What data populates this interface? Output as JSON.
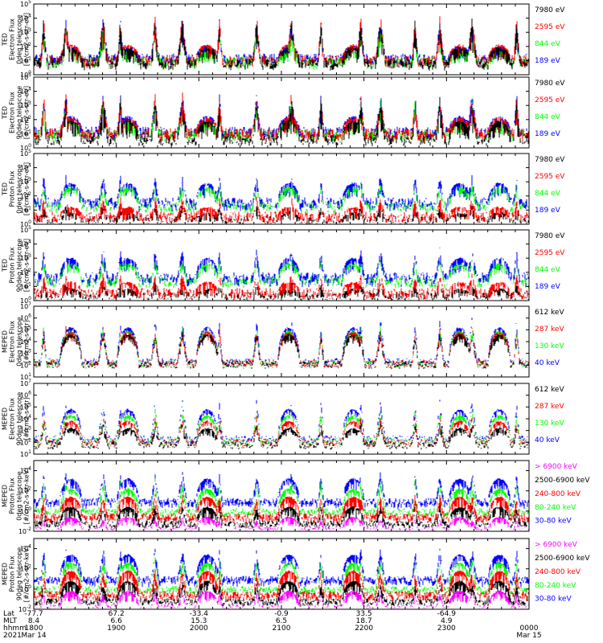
{
  "colors": {
    "blue": "#0000ff",
    "red": "#ff0000",
    "green": "#00ff00",
    "black": "#000000",
    "magenta": "#ff00ff"
  },
  "chart_data": [
    {
      "type": "line",
      "ylabel": "TED\nElectron Flux\n0deg telescope\n[#/cm2-s-str-eV]",
      "yscale": "log",
      "ylim_exp": [
        0,
        5
      ],
      "ytick_exponents": [
        0,
        1,
        2,
        3,
        4,
        5
      ],
      "legend": [
        {
          "label": "7980 eV",
          "color": "#000000"
        },
        {
          "label": "2595 eV",
          "color": "#ff0000"
        },
        {
          "label": "844 eV",
          "color": "#00ff00"
        },
        {
          "label": "189 eV",
          "color": "#0000ff"
        }
      ],
      "series": [
        {
          "color": "#0000ff",
          "base": 1.2,
          "peak": 2.0,
          "spike": 4.2,
          "minfrac": 0.55
        },
        {
          "color": "#00ff00",
          "base": 1.0,
          "peak": 1.6,
          "spike": 3.8,
          "minfrac": 0.5
        },
        {
          "color": "#ff0000",
          "base": 1.1,
          "peak": 2.1,
          "spike": 4.4,
          "minfrac": 0.5
        },
        {
          "color": "#000000",
          "base": 0.9,
          "peak": 1.9,
          "spike": 4.2,
          "minfrac": 0.45
        }
      ]
    },
    {
      "type": "line",
      "ylabel": "TED\nElectron Flux\n90deg telescope\n[#/cm2-s-str-eV]",
      "yscale": "log",
      "ylim_exp": [
        0,
        5
      ],
      "ytick_exponents": [
        0,
        1,
        2,
        3,
        4,
        5
      ],
      "legend": [
        {
          "label": "7980 eV",
          "color": "#000000"
        },
        {
          "label": "2595 eV",
          "color": "#ff0000"
        },
        {
          "label": "844 eV",
          "color": "#00ff00"
        },
        {
          "label": "189 eV",
          "color": "#0000ff"
        }
      ],
      "series": [
        {
          "color": "#0000ff",
          "base": 1.2,
          "peak": 2.2,
          "spike": 4.0,
          "minfrac": 0.55
        },
        {
          "color": "#00ff00",
          "base": 1.0,
          "peak": 1.8,
          "spike": 3.6,
          "minfrac": 0.5
        },
        {
          "color": "#ff0000",
          "base": 1.1,
          "peak": 2.1,
          "spike": 4.0,
          "minfrac": 0.45
        },
        {
          "color": "#000000",
          "base": 0.6,
          "peak": 1.9,
          "spike": 3.8,
          "minfrac": 0.35
        }
      ]
    },
    {
      "type": "line",
      "ylabel": "TED\nProton Flux\n0deg telescope\n[#/cm2-s-str-eV]",
      "yscale": "log",
      "ylim_exp": [
        0,
        5
      ],
      "ytick_exponents": [
        0,
        1,
        2,
        3,
        4,
        5
      ],
      "legend": [
        {
          "label": "7980 eV",
          "color": "#000000"
        },
        {
          "label": "2595 eV",
          "color": "#ff0000"
        },
        {
          "label": "844 eV",
          "color": "#00ff00"
        },
        {
          "label": "189 eV",
          "color": "#0000ff"
        }
      ],
      "series": [
        {
          "color": "#000000",
          "base": 0.3,
          "peak": 0.8,
          "spike": 1.5,
          "minfrac": 0.2
        },
        {
          "color": "#ff0000",
          "base": 0.6,
          "peak": 1.2,
          "spike": 2.0,
          "minfrac": 0.25
        },
        {
          "color": "#0000ff",
          "base": 1.6,
          "peak": 2.9,
          "spike": 3.6,
          "minfrac": 0.65
        },
        {
          "color": "#00ff00",
          "base": 1.3,
          "peak": 2.6,
          "spike": 3.0,
          "minfrac": 0.75
        }
      ]
    },
    {
      "type": "line",
      "ylabel": "TED\nProton Flux\n90deg telescope\n[#/cm2-s-str-eV]",
      "yscale": "log",
      "ylim_exp": [
        0,
        5
      ],
      "ytick_exponents": [
        0,
        1,
        2,
        3,
        4,
        5
      ],
      "legend": [
        {
          "label": "7980 eV",
          "color": "#000000"
        },
        {
          "label": "2595 eV",
          "color": "#ff0000"
        },
        {
          "label": "844 eV",
          "color": "#00ff00"
        },
        {
          "label": "189 eV",
          "color": "#0000ff"
        }
      ],
      "series": [
        {
          "color": "#000000",
          "base": 0.3,
          "peak": 0.8,
          "spike": 1.4,
          "minfrac": 0.2
        },
        {
          "color": "#ff0000",
          "base": 0.6,
          "peak": 1.3,
          "spike": 2.0,
          "minfrac": 0.25
        },
        {
          "color": "#0000ff",
          "base": 1.7,
          "peak": 3.0,
          "spike": 3.8,
          "minfrac": 0.65
        },
        {
          "color": "#00ff00",
          "base": 1.4,
          "peak": 2.6,
          "spike": 3.1,
          "minfrac": 0.75
        }
      ]
    },
    {
      "type": "line",
      "ylabel": "MEPED\nElectron Flux\n0deg telescope\n[#/cm2-s-str]",
      "yscale": "log",
      "ylim_exp": [
        1,
        7
      ],
      "ytick_exponents": [
        1,
        2,
        3,
        4,
        5,
        6,
        7
      ],
      "legend": [
        {
          "label": "612 keV",
          "color": "#000000"
        },
        {
          "label": "287 keV",
          "color": "#ff0000"
        },
        {
          "label": "130 keV",
          "color": "#00ff00"
        },
        {
          "label": "40 keV",
          "color": "#0000ff"
        }
      ],
      "series": [
        {
          "color": "#0000ff",
          "base": 2.3,
          "peak": 5.2,
          "spike": 6.2,
          "minfrac": 0.85
        },
        {
          "color": "#00ff00",
          "base": 2.1,
          "peak": 4.9,
          "spike": 5.6,
          "minfrac": 0.85
        },
        {
          "color": "#ff0000",
          "base": 2.2,
          "peak": 4.8,
          "spike": 5.4,
          "minfrac": 0.8
        },
        {
          "color": "#000000",
          "base": 2.1,
          "peak": 4.6,
          "spike": 5.0,
          "minfrac": 0.8
        }
      ]
    },
    {
      "type": "line",
      "ylabel": "MEPED\nElectron Flux\n90deg telescope\n[#/cm2-s-str]",
      "yscale": "log",
      "ylim_exp": [
        1,
        7
      ],
      "ytick_exponents": [
        1,
        2,
        3,
        4,
        5,
        6,
        7
      ],
      "legend": [
        {
          "label": "612 keV",
          "color": "#000000"
        },
        {
          "label": "287 keV",
          "color": "#ff0000"
        },
        {
          "label": "130 keV",
          "color": "#00ff00"
        },
        {
          "label": "40 keV",
          "color": "#0000ff"
        }
      ],
      "series": [
        {
          "color": "#0000ff",
          "base": 2.3,
          "peak": 4.8,
          "spike": 5.8,
          "minfrac": 0.85
        },
        {
          "color": "#00ff00",
          "base": 2.1,
          "peak": 4.3,
          "spike": 5.0,
          "minfrac": 0.85
        },
        {
          "color": "#ff0000",
          "base": 2.0,
          "peak": 3.8,
          "spike": 4.4,
          "minfrac": 0.8
        },
        {
          "color": "#000000",
          "base": 1.8,
          "peak": 3.2,
          "spike": 3.8,
          "minfrac": 0.7
        }
      ]
    },
    {
      "type": "line",
      "ylabel": "MEPED\nProton Flux\n0deg telescope\n[#/cm2-s-str-keV]",
      "yscale": "log",
      "ylim_exp": [
        -2,
        5
      ],
      "ytick_exponents": [
        -2,
        0,
        2,
        4
      ],
      "legend": [
        {
          "label": "> 6900 keV",
          "color": "#ff00ff"
        },
        {
          "label": "2500-6900 keV",
          "color": "#000000"
        },
        {
          "label": "240-800 keV",
          "color": "#ff0000"
        },
        {
          "label": "80-240 keV",
          "color": "#00ff00"
        },
        {
          "label": "30-80 keV",
          "color": "#0000ff"
        }
      ],
      "series": [
        {
          "color": "#0000ff",
          "base": 1.0,
          "peak": 3.2,
          "spike": 4.0,
          "minfrac": 0.8
        },
        {
          "color": "#00ff00",
          "base": 0.0,
          "peak": 2.2,
          "spike": 3.4,
          "minfrac": 0.8
        },
        {
          "color": "#ff0000",
          "base": -0.5,
          "peak": 1.4,
          "spike": 1.8,
          "minfrac": 0.6
        },
        {
          "color": "#000000",
          "base": -1.2,
          "peak": 0.4,
          "spike": 0.6,
          "minfrac": 0.5
        },
        {
          "color": "#ff00ff",
          "base": -1.8,
          "peak": -0.6,
          "spike": -0.6,
          "minfrac": 0.4
        }
      ]
    },
    {
      "type": "line",
      "ylabel": "MEPED\nProton Flux\n90deg telescope\n[#/cm2-s-str-keV]",
      "yscale": "log",
      "ylim_exp": [
        -2,
        5
      ],
      "ytick_exponents": [
        -2,
        0,
        2,
        4
      ],
      "legend": [
        {
          "label": "> 6900 keV",
          "color": "#ff00ff"
        },
        {
          "label": "2500-6900 keV",
          "color": "#000000"
        },
        {
          "label": "240-800 keV",
          "color": "#ff0000"
        },
        {
          "label": "80-240 keV",
          "color": "#00ff00"
        },
        {
          "label": "30-80 keV",
          "color": "#0000ff"
        }
      ],
      "series": [
        {
          "color": "#0000ff",
          "base": 1.0,
          "peak": 3.4,
          "spike": 4.2,
          "minfrac": 0.8
        },
        {
          "color": "#00ff00",
          "base": 0.0,
          "peak": 2.6,
          "spike": 3.4,
          "minfrac": 0.8
        },
        {
          "color": "#ff0000",
          "base": -0.5,
          "peak": 1.8,
          "spike": 2.0,
          "minfrac": 0.6
        },
        {
          "color": "#000000",
          "base": -1.2,
          "peak": 0.8,
          "spike": 0.8,
          "minfrac": 0.5
        },
        {
          "color": "#ff00ff",
          "base": -1.8,
          "peak": -0.2,
          "spike": -0.2,
          "minfrac": 0.4
        }
      ]
    }
  ],
  "x_axis": {
    "row_labels": [
      "Lat",
      "MLT",
      "hhmm",
      "2021"
    ],
    "columns": [
      {
        "lat": "-77.7",
        "mlt": "8.4",
        "hhmm": "1800",
        "date": "Mar 14"
      },
      {
        "lat": "67.2",
        "mlt": "6.6",
        "hhmm": "1900",
        "date": ""
      },
      {
        "lat": "-33.4",
        "mlt": "15.3",
        "hhmm": "2000",
        "date": ""
      },
      {
        "lat": "-0.9",
        "mlt": "6.5",
        "hhmm": "2100",
        "date": ""
      },
      {
        "lat": "33.5",
        "mlt": "18.7",
        "hhmm": "2200",
        "date": ""
      },
      {
        "lat": "-64.9",
        "mlt": "4.9",
        "hhmm": "2300",
        "date": ""
      },
      {
        "lat": "",
        "mlt": "",
        "hhmm": "0000",
        "date": "Mar 15"
      }
    ]
  },
  "orbit_passes": {
    "ref_times_utc": [
      "1800",
      "1900",
      "2000",
      "2100",
      "2200",
      "2300",
      "0000"
    ],
    "polar_dome_centers_frac": [
      0.075,
      0.19,
      0.35,
      0.515,
      0.645,
      0.86,
      0.94
    ],
    "spike_centers_frac": [
      0.02,
      0.065,
      0.14,
      0.175,
      0.245,
      0.3,
      0.375,
      0.45,
      0.52,
      0.58,
      0.66,
      0.7,
      0.77,
      0.82,
      0.885,
      0.975
    ]
  }
}
